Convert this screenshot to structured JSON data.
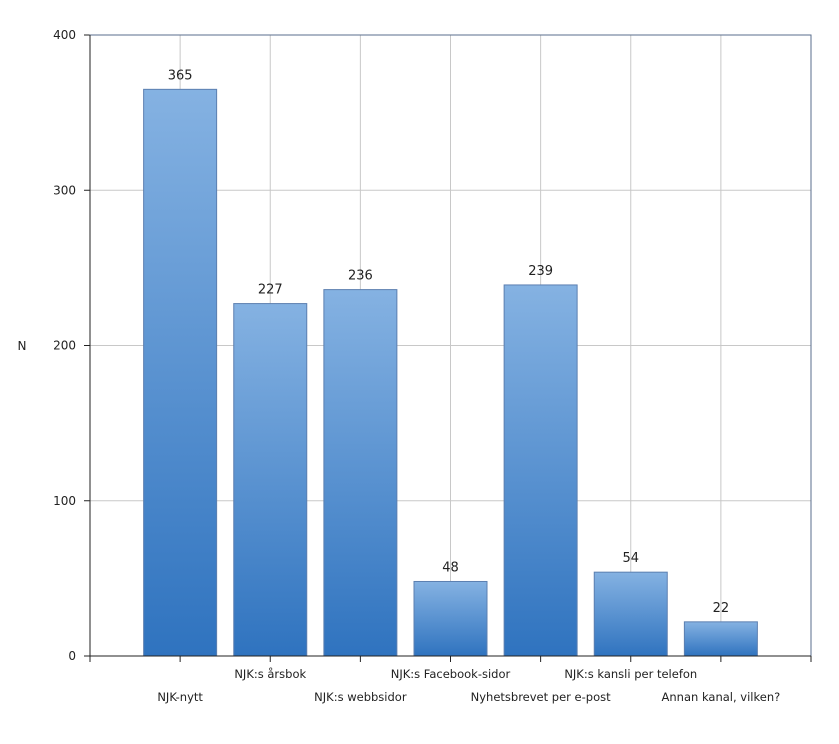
{
  "chart_data": {
    "type": "bar",
    "title": "",
    "xlabel": "",
    "ylabel": "N",
    "ylim": [
      0,
      400
    ],
    "yticks": [
      0,
      100,
      200,
      300,
      400
    ],
    "grid": true,
    "categories": [
      "NJK-nytt",
      "NJK:s årsbok",
      "NJK:s webbsidor",
      "NJK:s Facebook-sidor",
      "Nyhetsbrevet per e-post",
      "NJK:s kansli per telefon",
      "Annan kanal, vilken?"
    ],
    "values": [
      365,
      227,
      236,
      48,
      239,
      54,
      22
    ],
    "colors": {
      "bar_top": "#85b2e2",
      "bar_bottom": "#2f73bf"
    }
  }
}
